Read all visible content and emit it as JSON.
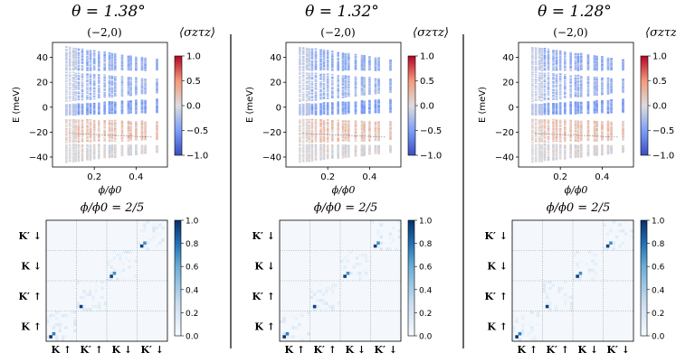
{
  "panels": [
    {
      "theta_title": "θ = 1.38°"
    },
    {
      "theta_title": "θ = 1.32°"
    },
    {
      "theta_title": "θ = 1.28°"
    }
  ],
  "chart_data": {
    "type": "scatter",
    "spectrum": {
      "subtitle": "(−2,0)",
      "colorbar_title": "⟨σzτz⟩",
      "xlabel": "ϕ/ϕ0",
      "ylabel": "E (meV)",
      "xlim": [
        0.0,
        0.55
      ],
      "ylim": [
        -48,
        52
      ],
      "xticks": [
        0.2,
        0.4
      ],
      "xtick_labels": [
        "0.2",
        "0.4"
      ],
      "yticks": [
        -40,
        -20,
        0,
        20,
        40
      ],
      "ytick_labels": [
        "−40",
        "−20",
        "0",
        "20",
        "40"
      ],
      "colorbar_range": [
        -1.0,
        1.0
      ],
      "colorbar_ticks": [
        "1.0",
        "0.5",
        "0.0",
        "−0.5",
        "−1.0"
      ],
      "flux_values": [
        0.0667,
        0.0833,
        0.1,
        0.1111,
        0.125,
        0.1429,
        0.1667,
        0.1818,
        0.2,
        0.2222,
        0.25,
        0.2727,
        0.2857,
        0.3,
        0.3333,
        0.3636,
        0.375,
        0.4,
        0.4286,
        0.4444,
        0.5
      ],
      "bands": [
        {
          "name": "upper-blue",
          "e_top_start": 48,
          "e_top_end": 38,
          "e_bottom_start": 30,
          "e_bottom_end": 30,
          "sigma_tau": -0.35
        },
        {
          "name": "upper-lower-blue",
          "e_top_start": 28,
          "e_top_end": 22,
          "e_bottom_start": 5,
          "e_bottom_end": 12,
          "sigma_tau": -0.3
        },
        {
          "name": "near-zero-blue",
          "e_top_start": 2,
          "e_top_end": 6,
          "e_bottom_start": -6,
          "e_bottom_end": -4,
          "sigma_tau": -0.45
        },
        {
          "name": "lower-orange",
          "e_top_start": -10,
          "e_top_end": -12,
          "e_bottom_start": -28,
          "e_bottom_end": -26,
          "sigma_tau": 0.2
        },
        {
          "name": "bottom-gray",
          "e_top_start": -30,
          "e_top_end": -31,
          "e_bottom_start": -44,
          "e_bottom_end": -36,
          "sigma_tau": 0.0
        }
      ]
    },
    "matrix": {
      "title": "ϕ/ϕ0 = 2/5",
      "row_labels": [
        "K′ ↓",
        "K ↓",
        "K′ ↑",
        "K ↑"
      ],
      "col_labels": [
        "K ↑",
        "K′ ↑",
        "K ↓",
        "K′ ↓"
      ],
      "grid_size": 40,
      "colorbar_range": [
        0.0,
        1.0
      ],
      "colorbar_ticks": [
        "1.0",
        "0.8",
        "0.6",
        "0.4",
        "0.2",
        "0.0"
      ],
      "diagonal_peaks": [
        {
          "row": 1,
          "col": 1,
          "value": 1.0
        },
        {
          "row": 2,
          "col": 2,
          "value": 0.75
        },
        {
          "row": 11,
          "col": 11,
          "value": 0.95
        },
        {
          "row": 21,
          "col": 21,
          "value": 0.95
        },
        {
          "row": 22,
          "col": 22,
          "value": 0.7
        },
        {
          "row": 31,
          "col": 31,
          "value": 0.95
        },
        {
          "row": 32,
          "col": 32,
          "value": 0.7
        }
      ]
    }
  }
}
